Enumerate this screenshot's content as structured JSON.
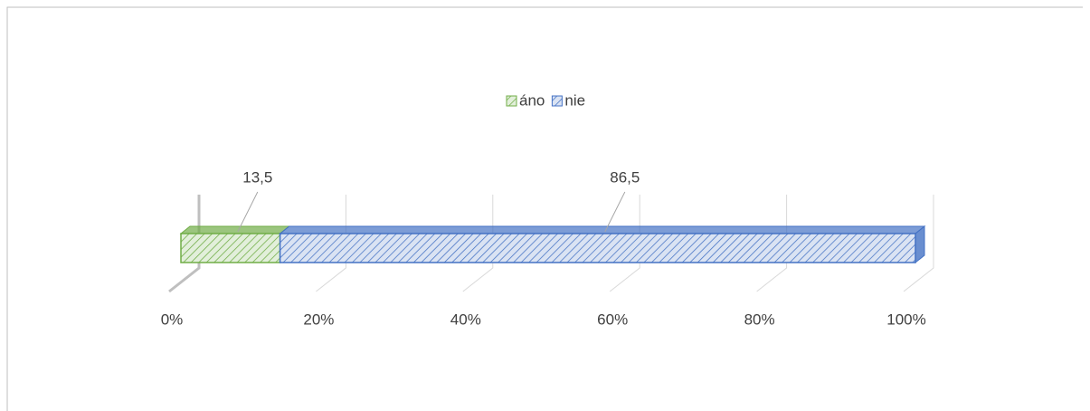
{
  "chart_data": {
    "type": "stacked_bar_3d",
    "categories": [
      null
    ],
    "series": [
      {
        "name": "áno",
        "color": "#70ad47",
        "values": [
          13.5
        ],
        "value_labels": [
          "13,5"
        ]
      },
      {
        "name": "nie",
        "color": "#4472c4",
        "values": [
          86.5
        ],
        "value_labels": [
          "86,5"
        ]
      }
    ],
    "xlim": [
      0,
      100
    ],
    "xticks": [
      {
        "value": 0,
        "label": "0%"
      },
      {
        "value": 20,
        "label": "20%"
      },
      {
        "value": 40,
        "label": "40%"
      },
      {
        "value": 60,
        "label": "60%"
      },
      {
        "value": 80,
        "label": "80%"
      },
      {
        "value": 100,
        "label": "100%"
      }
    ],
    "grid": true,
    "legend": "top"
  }
}
